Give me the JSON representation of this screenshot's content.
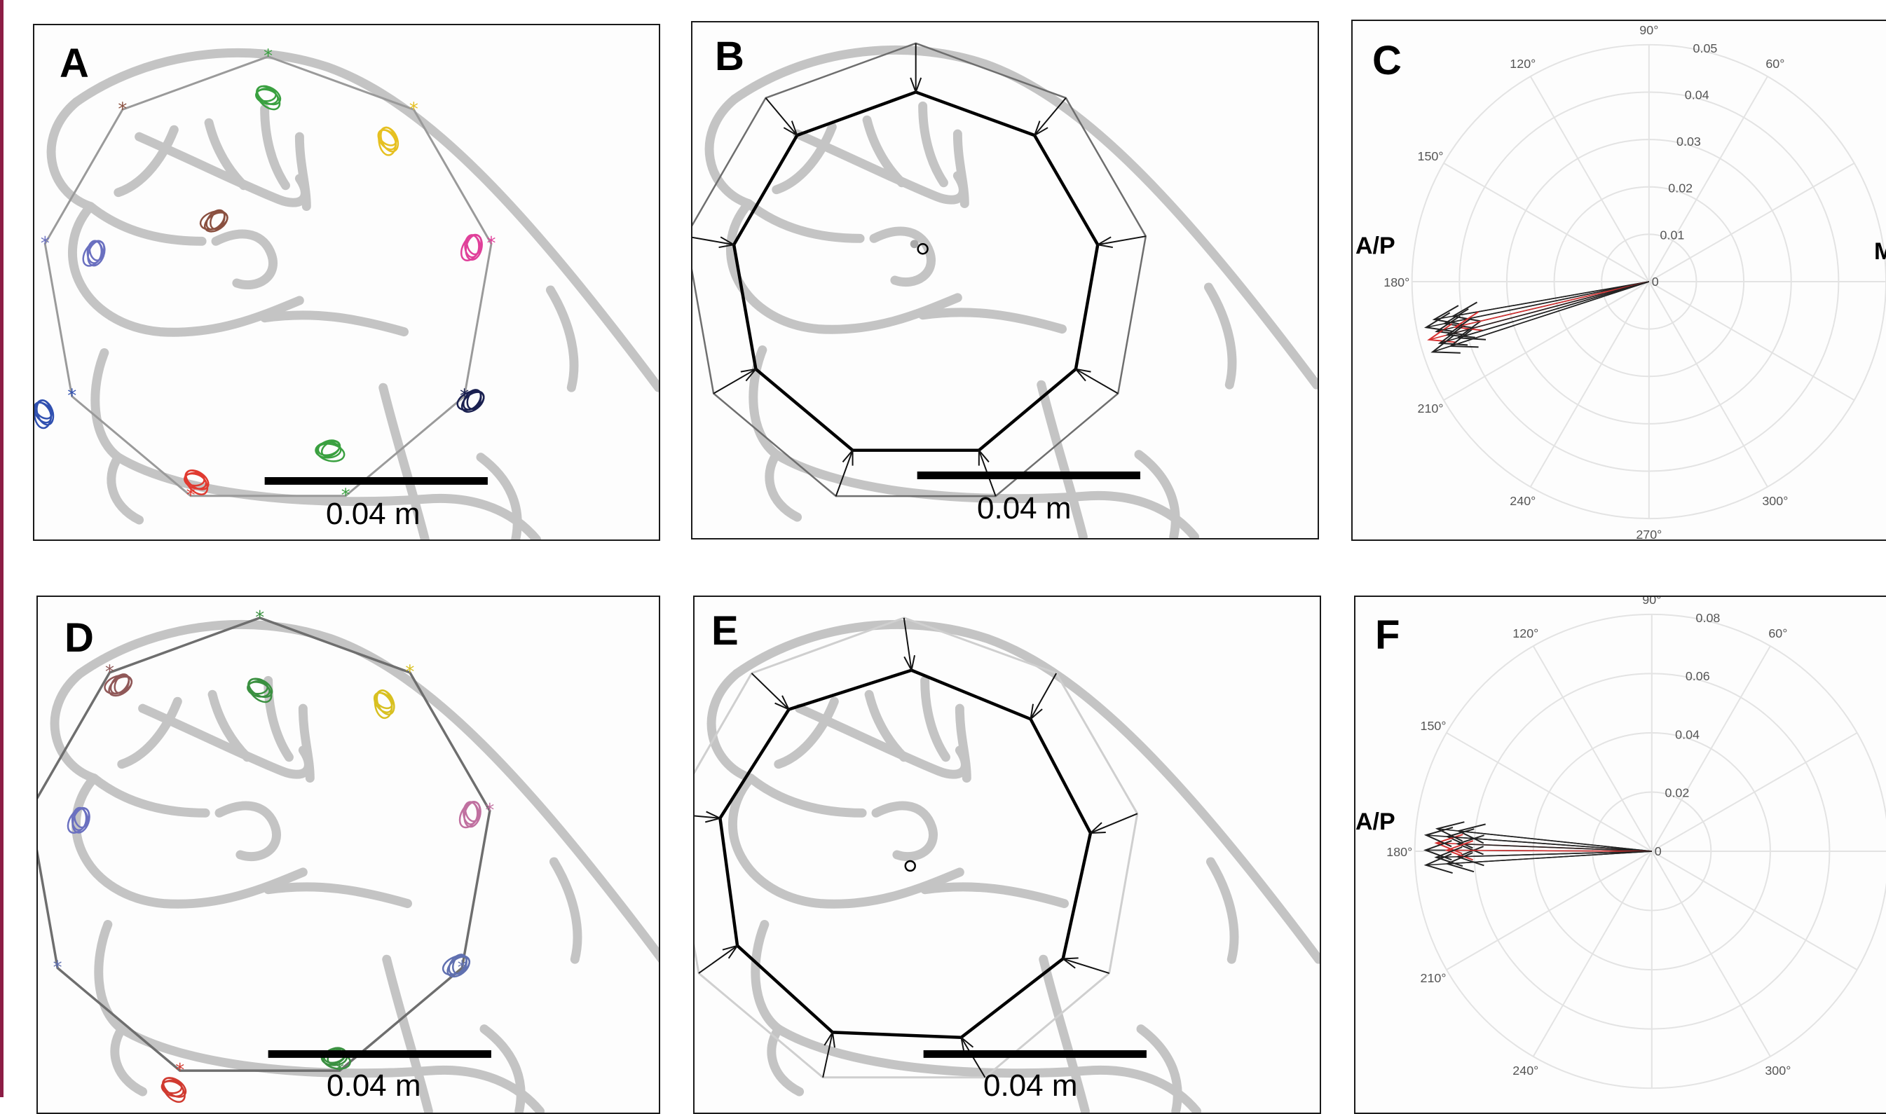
{
  "colors": {
    "accent": "#8c1d45",
    "branch": "#c4c4c4",
    "polygon": "#9a9a9a",
    "polygon_dark": "#6e6e6e",
    "polygon_faint": "#cfcfcf",
    "arrow": "#111111",
    "arrow_red": "#d73030",
    "grid": "#e3e3e3"
  },
  "panels": [
    {
      "id": "A",
      "label": "A",
      "scale_text": "0.04 m"
    },
    {
      "id": "B",
      "label": "B",
      "scale_text": "0.04 m"
    },
    {
      "id": "C",
      "label": "C",
      "ap_label": "A/P",
      "right_label": "M",
      "angle_labels": [
        "90°",
        "120°",
        "60°",
        "150°",
        "180°",
        "210°",
        "240°",
        "270°",
        "300°"
      ],
      "radial_labels": [
        "0.05",
        "0.04",
        "0.03",
        "0.02",
        "0.01",
        "0"
      ]
    },
    {
      "id": "D",
      "label": "D",
      "scale_text": "0.04 m"
    },
    {
      "id": "E",
      "label": "E",
      "scale_text": "0.04 m"
    },
    {
      "id": "F",
      "label": "F",
      "ap_label": "A/P",
      "angle_labels": [
        "90°",
        "120°",
        "60°",
        "150°",
        "180°",
        "210°",
        "240°",
        "300°"
      ],
      "radial_labels": [
        "0.08",
        "0.06",
        "0.04",
        "0.02",
        "0"
      ]
    }
  ],
  "marker_colors_top": [
    "#3aa040",
    "#e6c020",
    "#e0409a",
    "#1a2050",
    "#3aa040",
    "#e03a30",
    "#3050b0",
    "#6a70c0",
    "#8a5040"
  ],
  "marker_colors_bottom": [
    "#3a9040",
    "#d8c020",
    "#c070a0",
    "#6070b0",
    "#3a9040",
    "#d03a30",
    "#6070b0",
    "#6a70c0",
    "#905858"
  ]
}
